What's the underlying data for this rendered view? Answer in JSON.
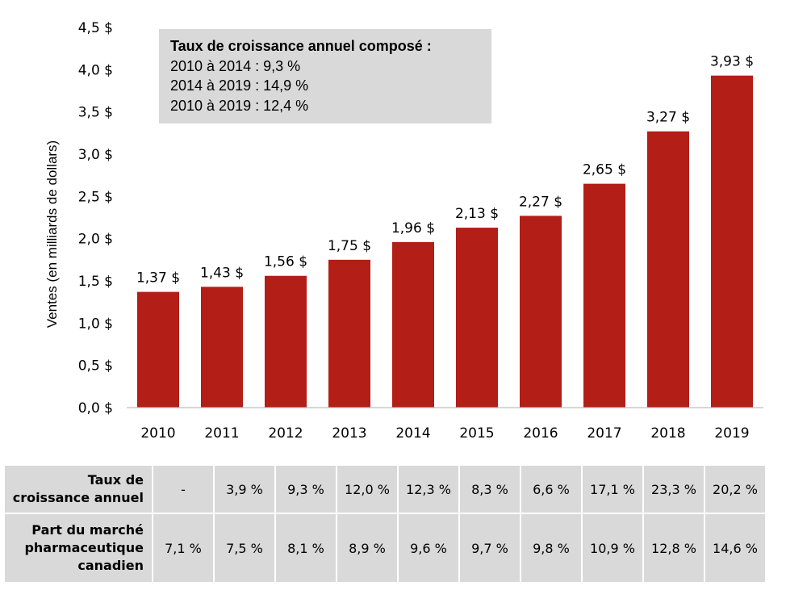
{
  "chart_data": {
    "type": "bar",
    "title": "",
    "xlabel": "",
    "ylabel": "Ventes (en milliards de dollars)",
    "categories": [
      "2010",
      "2011",
      "2012",
      "2013",
      "2014",
      "2015",
      "2016",
      "2017",
      "2018",
      "2019"
    ],
    "values": [
      1.37,
      1.43,
      1.56,
      1.75,
      1.96,
      2.13,
      2.27,
      2.65,
      3.27,
      3.93
    ],
    "data_labels": [
      "1,37 $",
      "1,43 $",
      "1,56 $",
      "1,75 $",
      "1,96 $",
      "2,13 $",
      "2,27 $",
      "2,65 $",
      "3,27 $",
      "3,93 $"
    ],
    "ylim": [
      0,
      4.5
    ],
    "yticks": [
      0,
      0.5,
      1.0,
      1.5,
      2.0,
      2.5,
      3.0,
      3.5,
      4.0,
      4.5
    ],
    "ytick_labels": [
      "0,0 $",
      "0,5 $",
      "1,0 $",
      "1,5 $",
      "2,0 $",
      "2,5 $",
      "3,0 $",
      "3,5 $",
      "4,0 $",
      "4,5 $"
    ],
    "grid": false,
    "bar_color": "#B31E17",
    "annotation": {
      "title": "Taux de croissance annuel composé :",
      "lines": [
        "2010 à 2014 : 9,3 %",
        "2014 à 2019 : 14,9 %",
        "2010 à 2019 : 12,4 %"
      ]
    }
  },
  "table": {
    "rows": [
      {
        "header": [
          "Taux de",
          "croissance annuel"
        ],
        "values": [
          "-",
          "3,9 %",
          "9,3 %",
          "12,0 %",
          "12,3 %",
          "8,3 %",
          "6,6 %",
          "17,1 %",
          "23,3 %",
          "20,2 %"
        ]
      },
      {
        "header": [
          "Part du marché",
          "pharmaceutique",
          "canadien"
        ],
        "values": [
          "7,1 %",
          "7,5 %",
          "8,1 %",
          "8,9 %",
          "9,6 %",
          "9,7 %",
          "9,8 %",
          "10,9 %",
          "12,8 %",
          "14,6 %"
        ]
      }
    ]
  }
}
